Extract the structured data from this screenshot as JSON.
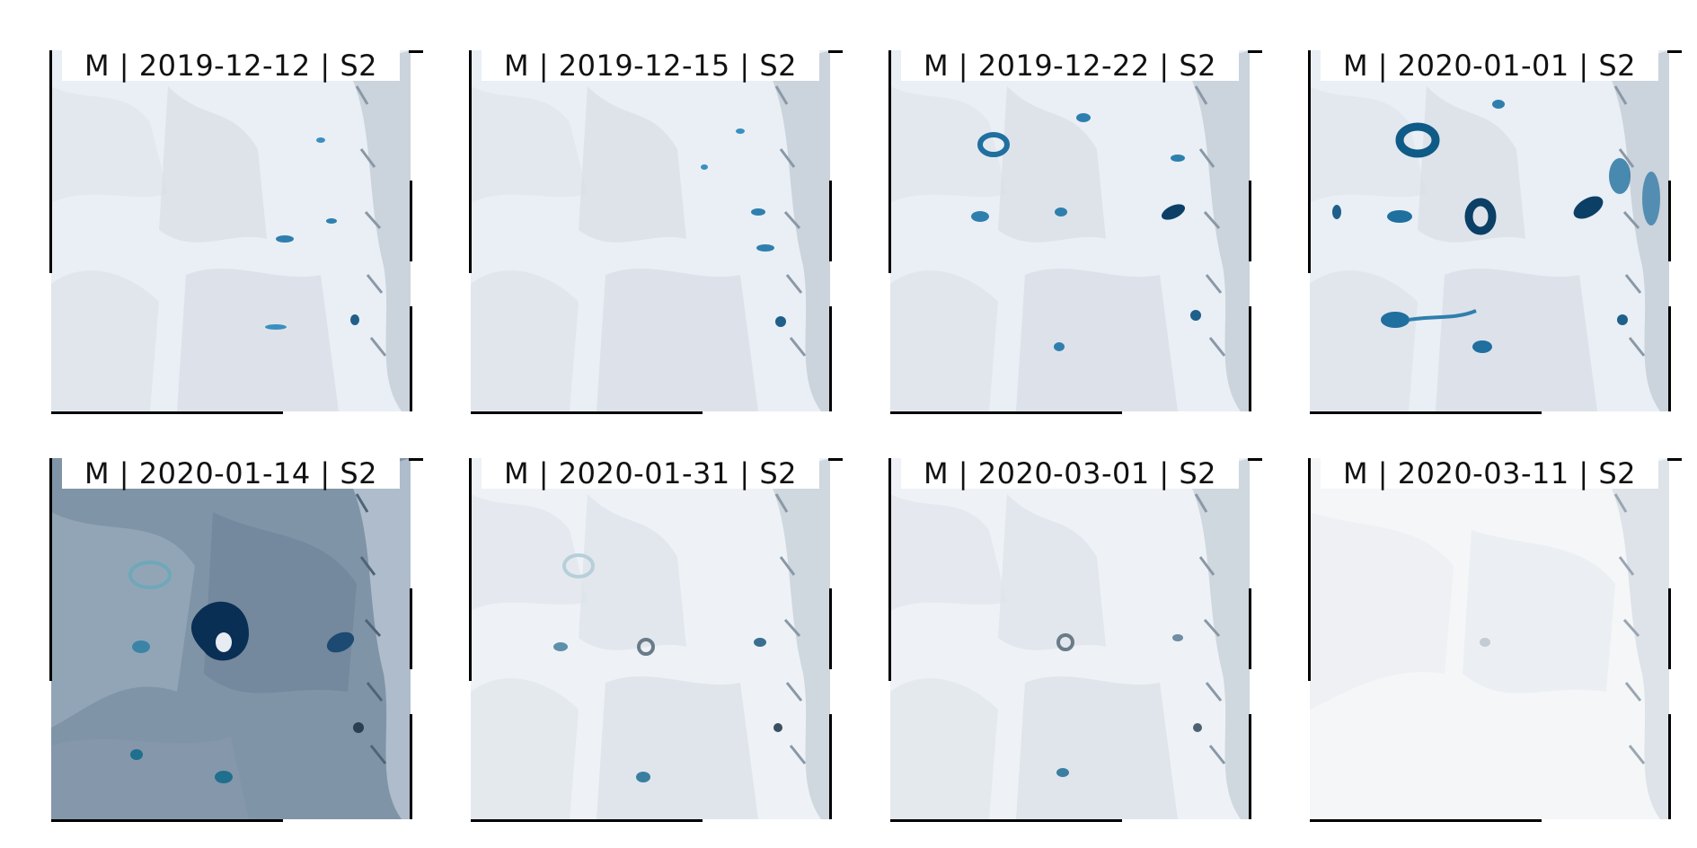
{
  "panels": [
    {
      "title": "M | 2019-12-12 | S2",
      "scene": "clear"
    },
    {
      "title": "M | 2019-12-15 | S2",
      "scene": "clear"
    },
    {
      "title": "M | 2019-12-22 | S2",
      "scene": "lakes"
    },
    {
      "title": "M | 2020-01-01 | S2",
      "scene": "lakes-strong"
    },
    {
      "title": "M | 2020-01-14 | S2",
      "scene": "dark"
    },
    {
      "title": "M | 2020-01-31 | S2",
      "scene": "faint"
    },
    {
      "title": "M | 2020-03-01 | S2",
      "scene": "faint"
    },
    {
      "title": "M | 2020-03-11 | S2",
      "scene": "snow"
    }
  ],
  "colors": {
    "snow": "#eef3f8",
    "ice_shadow": "#c9d3dc",
    "lake": "#1f6f9f",
    "lake_dark": "#0b3f66",
    "dark_scene": "#7f94a7",
    "bright_snow": "#f4f6f8"
  }
}
